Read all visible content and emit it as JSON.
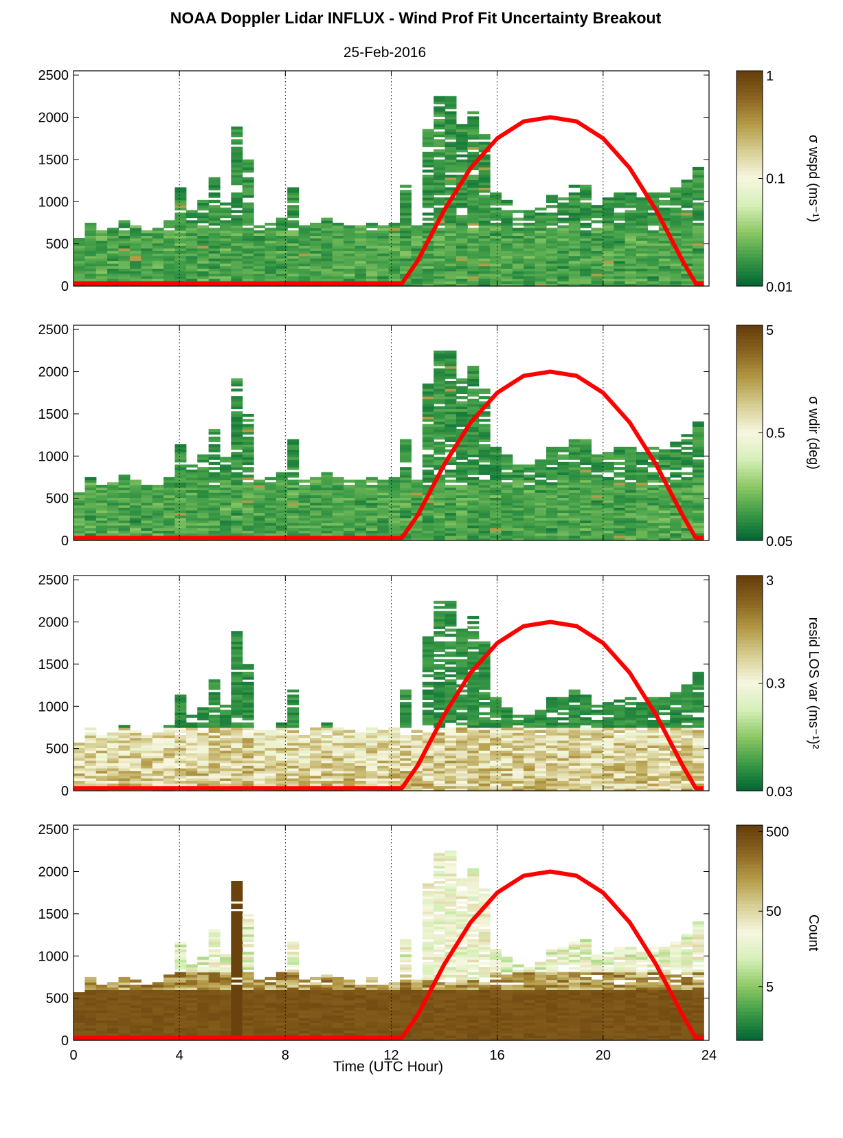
{
  "title": "NOAA Doppler Lidar INFLUX - Wind Prof Fit Uncertainty Breakout",
  "subtitle": "25-Feb-2016",
  "xlabel": "Time (UTC Hour)",
  "colors": {
    "sun_curve": "#ff0000",
    "colormap": [
      "#006633",
      "#3c9a46",
      "#8cc864",
      "#d6efb7",
      "#f7f7e1",
      "#d7cf94",
      "#b49b47",
      "#8a6420",
      "#643c0a"
    ]
  },
  "chart_data": [
    {
      "type": "heatmap",
      "colorbar_label": "σ wspd (ms⁻¹)",
      "colorbar_scale": "log",
      "colorbar_range": [
        0.01,
        1
      ],
      "colorbar_ticks": [
        "0.01",
        "0.1",
        "1"
      ],
      "profile_top": [
        550,
        750,
        650,
        680,
        780,
        700,
        650,
        680,
        780,
        1150,
        900,
        1000,
        1300,
        1000,
        1900,
        1500,
        700,
        750,
        800,
        1200,
        700,
        750,
        800,
        750,
        700,
        700,
        750,
        700,
        750,
        1200,
        700,
        1850,
        2250,
        2250,
        1900,
        2050,
        1800,
        1100,
        1000,
        900,
        900,
        950,
        1100,
        1100,
        1200,
        1200,
        1000,
        1050,
        1100,
        1100,
        1050,
        1100,
        1100,
        1150,
        1250,
        1400
      ],
      "value_desc": "mostly low uncertainty (0.01-0.05 ms-1) below ~700 m with isolated higher values aloft"
    },
    {
      "type": "heatmap",
      "colorbar_label": "σ wdir (deg)",
      "colorbar_scale": "log",
      "colorbar_range": [
        0.05,
        5
      ],
      "colorbar_ticks": [
        "0.05",
        "0.5",
        "5"
      ],
      "profile_top": [
        550,
        750,
        650,
        680,
        780,
        700,
        650,
        680,
        780,
        1150,
        900,
        1000,
        1300,
        1000,
        1900,
        1500,
        700,
        750,
        800,
        1200,
        700,
        750,
        800,
        750,
        700,
        700,
        750,
        700,
        750,
        1200,
        700,
        1850,
        2250,
        2250,
        1900,
        2050,
        1800,
        1100,
        1000,
        900,
        900,
        950,
        1100,
        1100,
        1200,
        1200,
        1000,
        1050,
        1100,
        1100,
        1050,
        1100,
        1100,
        1150,
        1250,
        1400
      ]
    },
    {
      "type": "heatmap",
      "colorbar_label": "resid LOS var (ms⁻¹)²",
      "colorbar_scale": "log",
      "colorbar_range": [
        0.03,
        3
      ],
      "colorbar_ticks": [
        "0.03",
        "0.3",
        "3"
      ],
      "profile_top": [
        550,
        750,
        650,
        680,
        780,
        700,
        650,
        680,
        780,
        1150,
        900,
        1000,
        1300,
        1000,
        1900,
        1500,
        700,
        750,
        800,
        1200,
        700,
        750,
        800,
        750,
        700,
        700,
        750,
        700,
        750,
        1200,
        700,
        1850,
        2250,
        2250,
        1900,
        2050,
        1800,
        1100,
        1000,
        900,
        900,
        950,
        1100,
        1100,
        1200,
        1200,
        1000,
        1050,
        1100,
        1100,
        1050,
        1100,
        1100,
        1150,
        1250,
        1400
      ]
    },
    {
      "type": "heatmap",
      "colorbar_label": "Count",
      "colorbar_scale": "log",
      "colorbar_range": [
        1,
        500
      ],
      "colorbar_ticks": [
        "5",
        "50",
        "500"
      ],
      "profile_top": [
        550,
        750,
        650,
        680,
        780,
        700,
        650,
        680,
        780,
        1150,
        900,
        1000,
        1300,
        1000,
        1900,
        1500,
        700,
        750,
        800,
        1200,
        700,
        750,
        800,
        750,
        700,
        700,
        750,
        700,
        750,
        1200,
        700,
        1850,
        2250,
        2250,
        1900,
        2050,
        1800,
        1100,
        1000,
        900,
        900,
        950,
        1100,
        1100,
        1200,
        1200,
        1000,
        1050,
        1100,
        1100,
        1050,
        1100,
        1100,
        1150,
        1250,
        1400
      ]
    }
  ],
  "shared_axes": {
    "xlim": [
      0,
      24
    ],
    "xticks": [
      0,
      4,
      8,
      12,
      16,
      20,
      24
    ],
    "ylim": [
      0,
      2550
    ],
    "yticks": [
      0,
      500,
      1000,
      1500,
      2000,
      2500
    ],
    "vertical_grid": [
      4,
      8,
      12,
      16,
      20,
      24
    ],
    "grid_style": "dotted"
  },
  "sun_curve": {
    "desc": "solar elevation overlay, red line",
    "x": [
      0,
      12.4,
      13,
      14,
      15,
      16,
      17,
      18,
      19,
      20,
      21,
      22,
      23,
      23.5,
      23.8
    ],
    "y": [
      30,
      30,
      300,
      900,
      1400,
      1750,
      1950,
      2000,
      1950,
      1750,
      1400,
      900,
      300,
      30,
      30
    ]
  }
}
